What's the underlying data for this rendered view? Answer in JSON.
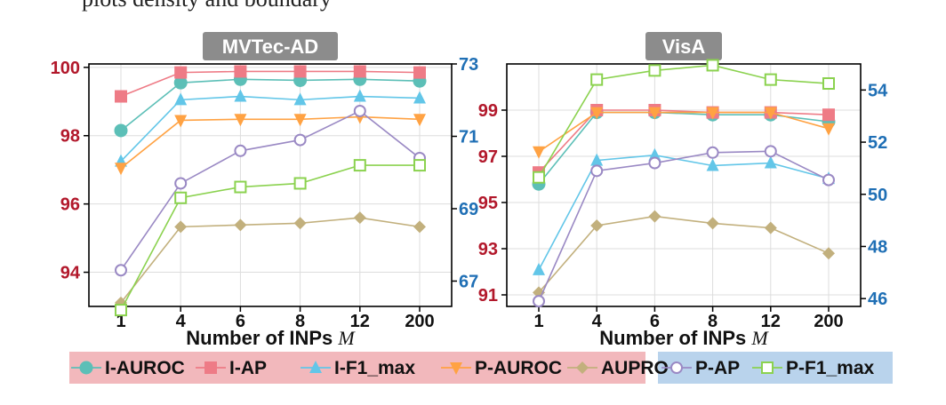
{
  "top_text": "plots density and boundary",
  "legend": {
    "group_a": [
      "I-AUROC",
      "I-AP",
      "I-F1_max",
      "P-AUROC",
      "AUPRO"
    ],
    "group_b": [
      "P-AP",
      "P-F1_max"
    ],
    "group_a_bg": "#f2b8bc",
    "group_b_bg": "#b9d3ec"
  },
  "colors": {
    "left_axis": "#b2182b",
    "right_axis": "#1f6fb5",
    "title_bg": "#8c8c8c",
    "title_text": "#ffffff"
  },
  "chart_data": [
    {
      "type": "line",
      "title": "MVTec-AD",
      "xlabel": "Number of INPs M",
      "categories": [
        "1",
        "4",
        "6",
        "8",
        "12",
        "200"
      ],
      "left_axis": {
        "ylim": [
          93,
          100.1
        ],
        "ticks": [
          "94",
          "96",
          "98",
          "100"
        ]
      },
      "right_axis": {
        "ylim": [
          66.3,
          73
        ],
        "ticks": [
          "67",
          "69",
          "71",
          "73"
        ]
      },
      "grid": true,
      "series": [
        {
          "name": "I-AUROC",
          "axis": "left",
          "marker": "circle",
          "color": "#5cbfb7",
          "values": [
            98.15,
            99.55,
            99.65,
            99.62,
            99.65,
            99.6
          ]
        },
        {
          "name": "I-AP",
          "axis": "left",
          "marker": "square",
          "color": "#ee7b86",
          "values": [
            99.15,
            99.85,
            99.88,
            99.88,
            99.88,
            99.85
          ]
        },
        {
          "name": "I-F1_max",
          "axis": "left",
          "marker": "triangle-up",
          "color": "#62c6e8",
          "values": [
            97.25,
            99.05,
            99.15,
            99.05,
            99.15,
            99.1
          ]
        },
        {
          "name": "P-AUROC",
          "axis": "left",
          "marker": "triangle-down",
          "color": "#ffa243",
          "values": [
            97.05,
            98.45,
            98.48,
            98.48,
            98.55,
            98.48
          ]
        },
        {
          "name": "AUPRO",
          "axis": "right",
          "marker": "diamond",
          "color": "#c2b07d",
          "values": [
            66.4,
            68.5,
            68.55,
            68.6,
            68.75,
            68.5
          ]
        },
        {
          "name": "P-AP",
          "axis": "right",
          "marker": "circle-open",
          "color": "#9a89c4",
          "values": [
            67.3,
            69.7,
            70.6,
            70.9,
            71.7,
            70.4
          ]
        },
        {
          "name": "P-F1_max",
          "axis": "right",
          "marker": "square-open",
          "color": "#8bd24f",
          "values": [
            66.2,
            69.3,
            69.6,
            69.7,
            70.2,
            70.2
          ]
        }
      ]
    },
    {
      "type": "line",
      "title": "VisA",
      "xlabel": "Number of INPs M",
      "categories": [
        "1",
        "4",
        "6",
        "8",
        "12",
        "200"
      ],
      "left_axis": {
        "ylim": [
          90.5,
          101
        ],
        "ticks": [
          "91",
          "93",
          "95",
          "97",
          "99"
        ]
      },
      "right_axis": {
        "ylim": [
          45.7,
          55
        ],
        "ticks": [
          "46",
          "48",
          "50",
          "52",
          "54"
        ]
      },
      "grid": true,
      "series": [
        {
          "name": "I-AUROC",
          "axis": "left",
          "marker": "circle",
          "color": "#5cbfb7",
          "values": [
            95.8,
            98.9,
            98.9,
            98.8,
            98.8,
            98.5
          ]
        },
        {
          "name": "I-AP",
          "axis": "left",
          "marker": "square",
          "color": "#ee7b86",
          "values": [
            96.3,
            99.0,
            99.0,
            98.9,
            98.9,
            98.8
          ]
        },
        {
          "name": "I-F1_max",
          "axis": "right",
          "marker": "triangle-up",
          "color": "#62c6e8",
          "values": [
            47.1,
            51.3,
            51.5,
            51.1,
            51.2,
            50.6
          ]
        },
        {
          "name": "P-AUROC",
          "axis": "left",
          "marker": "triangle-down",
          "color": "#ffa243",
          "values": [
            97.2,
            98.9,
            98.9,
            98.9,
            98.9,
            98.2
          ]
        },
        {
          "name": "AUPRO",
          "axis": "left",
          "marker": "diamond",
          "color": "#c2b07d",
          "values": [
            91.1,
            94.0,
            94.4,
            94.1,
            93.9,
            92.8
          ]
        },
        {
          "name": "P-AP",
          "axis": "right",
          "marker": "circle-open",
          "color": "#9a89c4",
          "values": [
            45.9,
            50.9,
            51.2,
            51.6,
            51.65,
            50.55
          ]
        },
        {
          "name": "P-F1_max",
          "axis": "right",
          "marker": "square-open",
          "color": "#8bd24f",
          "values": [
            50.65,
            54.4,
            54.75,
            54.95,
            54.4,
            54.25
          ]
        }
      ]
    }
  ]
}
